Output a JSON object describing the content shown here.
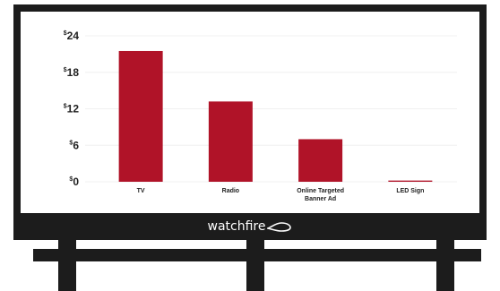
{
  "brand": {
    "name": "watchfire",
    "icon": "watchfire-swoosh-icon"
  },
  "colors": {
    "bar": "#b01328",
    "frame": "#1c1c1c",
    "grid": "#f0f0f0",
    "text": "#222222"
  },
  "chart_data": {
    "type": "bar",
    "title": "",
    "xlabel": "",
    "ylabel": "",
    "categories": [
      [
        "TV"
      ],
      [
        "Radio"
      ],
      [
        "Online Targeted",
        "Banner Ad"
      ],
      [
        "LED Sign"
      ]
    ],
    "values": [
      21.5,
      13.2,
      7.0,
      0.2
    ],
    "ylim": [
      0,
      24
    ],
    "yticks": [
      {
        "value": 0,
        "prefix": "$",
        "number": "0"
      },
      {
        "value": 6,
        "prefix": "$",
        "number": "6"
      },
      {
        "value": 12,
        "prefix": "$",
        "number": "12"
      },
      {
        "value": 18,
        "prefix": "$",
        "number": "18"
      },
      {
        "value": 24,
        "prefix": "$",
        "number": "24"
      }
    ],
    "grid": true,
    "legend": "none"
  }
}
